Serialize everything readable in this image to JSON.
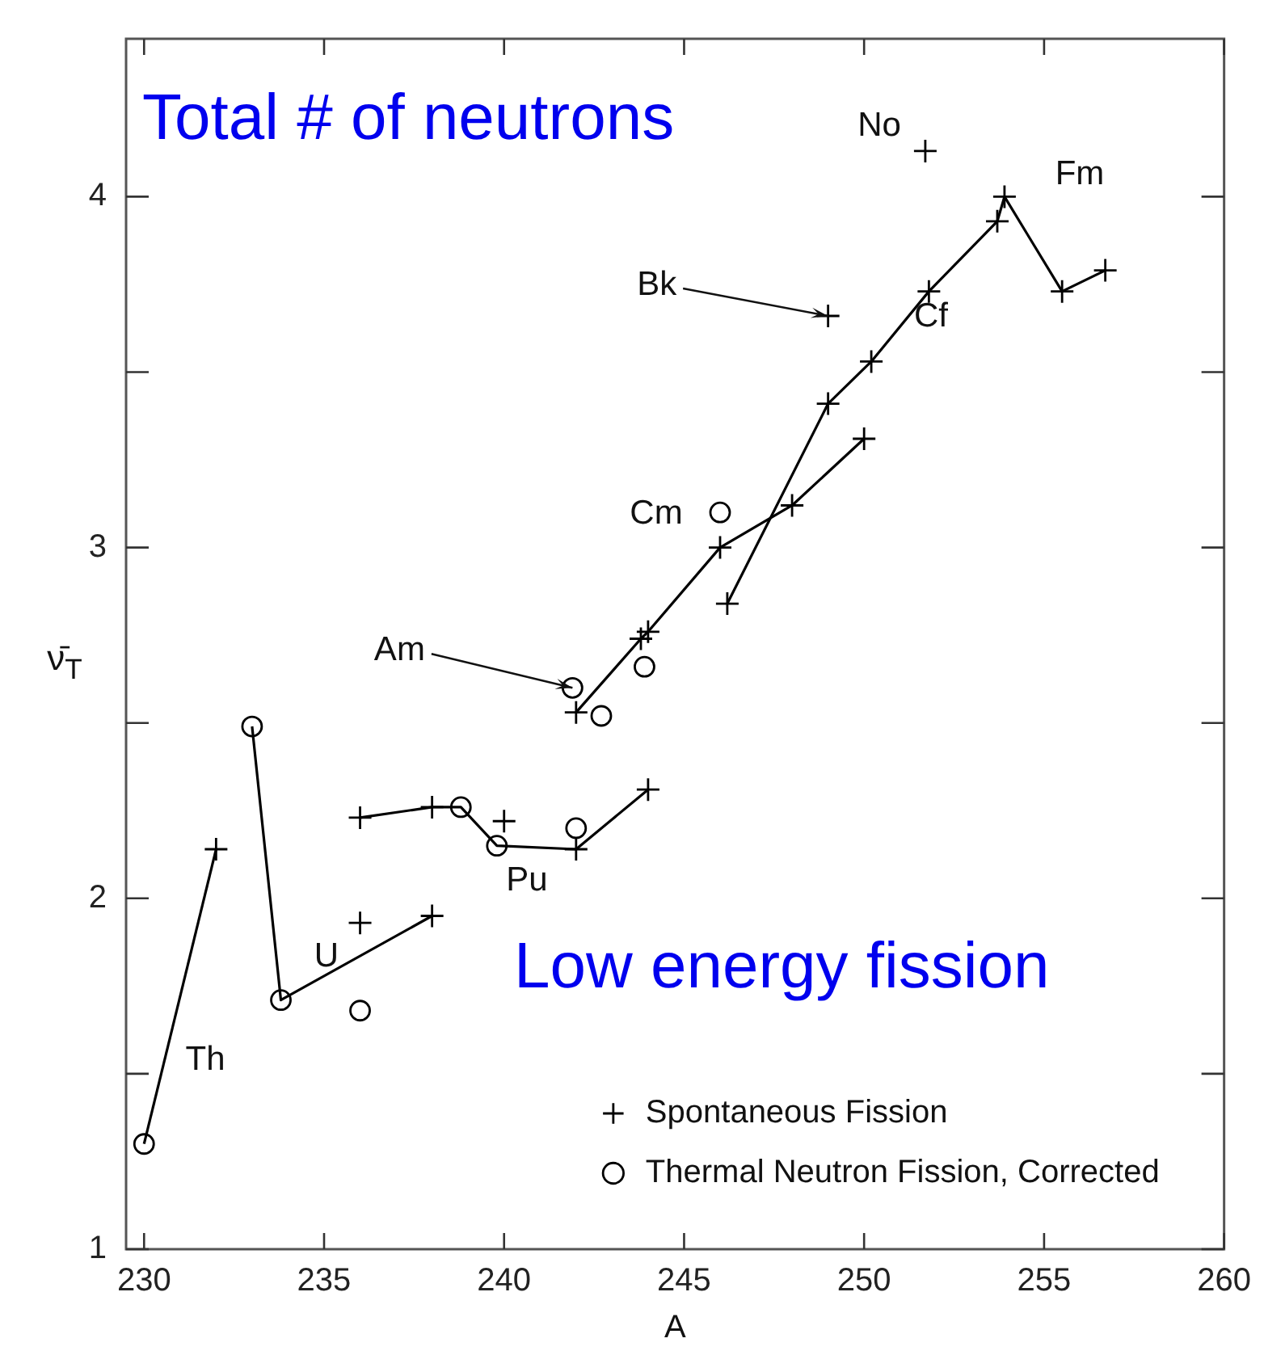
{
  "chart_data": {
    "type": "scatter",
    "xlabel": "A",
    "ylabel": "ν̄$_{T}$",
    "xlim": [
      229.5,
      260
    ],
    "ylim": [
      1,
      4.45
    ],
    "xticks": [
      230,
      235,
      240,
      245,
      250,
      255,
      260
    ],
    "yticks": [
      1,
      {
        "value": 1.5,
        "label": null
      },
      2,
      {
        "value": 2.5,
        "label": null
      },
      3,
      {
        "value": 3.5,
        "label": null
      },
      4
    ],
    "legend": "bottom right",
    "series": [
      {
        "name": "Spontaneous Fission",
        "type": "scatter",
        "marker": "cross",
        "color": "#000000",
        "x": [
          232,
          238,
          236,
          236,
          238,
          240,
          242,
          244,
          242,
          243.8,
          244,
          246,
          248,
          250,
          246.2,
          249,
          250.2,
          251.8,
          253.7,
          253.9,
          255.5,
          256.7,
          249,
          251.7
        ],
        "values": [
          2.14,
          1.95,
          1.93,
          2.23,
          2.26,
          2.22,
          2.14,
          2.31,
          2.53,
          2.74,
          2.76,
          3.0,
          3.12,
          3.31,
          2.84,
          3.41,
          3.53,
          3.73,
          3.93,
          4.0,
          3.73,
          3.79,
          3.66,
          4.13
        ]
      },
      {
        "name": "Thermal Neutron Fission, Corrected",
        "type": "scatter",
        "marker": "circle",
        "color": "#000000",
        "x": [
          230,
          233,
          233.8,
          236,
          238.8,
          239.8,
          242,
          241.9,
          242.7,
          243.9,
          246
        ],
        "values": [
          1.3,
          2.49,
          1.71,
          1.68,
          2.26,
          2.15,
          2.2,
          2.6,
          2.52,
          2.66,
          3.1
        ]
      },
      {
        "type": "line",
        "marker": "none",
        "color": "#000000",
        "x": [
          230,
          232
        ],
        "values": [
          1.3,
          2.14
        ]
      },
      {
        "type": "line",
        "marker": "none",
        "color": "#000000",
        "x": [
          233,
          233.8,
          238
        ],
        "values": [
          2.49,
          1.71,
          1.95
        ]
      },
      {
        "type": "line",
        "marker": "none",
        "color": "#000000",
        "x": [
          236,
          238,
          238.8,
          239.8,
          242,
          244
        ],
        "values": [
          2.23,
          2.26,
          2.26,
          2.15,
          2.14,
          2.31
        ]
      },
      {
        "type": "line",
        "marker": "none",
        "color": "#000000",
        "x": [
          242,
          243.8,
          244,
          246,
          248,
          250
        ],
        "values": [
          2.53,
          2.74,
          2.76,
          3.0,
          3.12,
          3.31
        ]
      },
      {
        "type": "line",
        "marker": "none",
        "color": "#000000",
        "x": [
          246.2,
          249,
          250.2,
          251.8,
          253.7,
          253.9,
          255.5,
          256.7
        ],
        "values": [
          2.84,
          3.41,
          3.53,
          3.73,
          3.93,
          4.0,
          3.73,
          3.79
        ]
      }
    ],
    "annotations": [
      "Total # of neutrons",
      "Low energy fission",
      "Th",
      "U",
      "Pu",
      {
        "text": "Am",
        "x": 241.9,
        "y": 2.6
      },
      "Cm",
      {
        "text": "Bk",
        "x": 249,
        "y": 3.66
      },
      "Cf",
      "Fm",
      "No"
    ]
  }
}
